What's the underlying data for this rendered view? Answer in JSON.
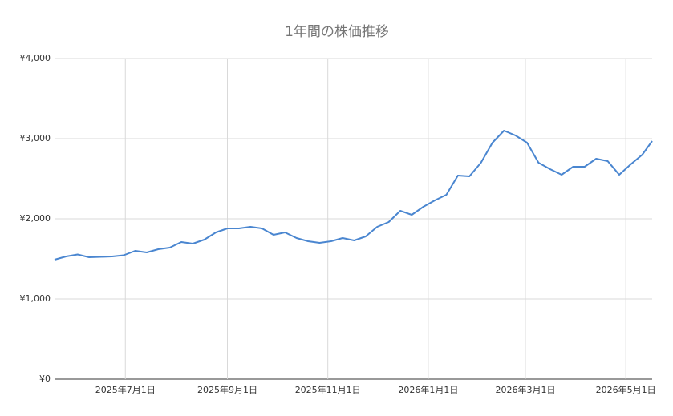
{
  "chart_data": {
    "type": "line",
    "title": "1年間の株価推移",
    "x": [
      "2025-05-19",
      "2025-05-26",
      "2025-06-02",
      "2025-06-09",
      "2025-06-16",
      "2025-06-23",
      "2025-06-30",
      "2025-07-07",
      "2025-07-14",
      "2025-07-21",
      "2025-07-28",
      "2025-08-04",
      "2025-08-11",
      "2025-08-18",
      "2025-08-25",
      "2025-09-01",
      "2025-09-08",
      "2025-09-15",
      "2025-09-22",
      "2025-09-29",
      "2025-10-06",
      "2025-10-13",
      "2025-10-20",
      "2025-10-27",
      "2025-11-03",
      "2025-11-10",
      "2025-11-17",
      "2025-11-24",
      "2025-12-01",
      "2025-12-08",
      "2025-12-15",
      "2025-12-22",
      "2025-12-29",
      "2026-01-05",
      "2026-01-12",
      "2026-01-19",
      "2026-01-26",
      "2026-02-02",
      "2026-02-09",
      "2026-02-16",
      "2026-02-23",
      "2026-03-02",
      "2026-03-09",
      "2026-03-16",
      "2026-03-23",
      "2026-03-30",
      "2026-04-06",
      "2026-04-13",
      "2026-04-20",
      "2026-04-27",
      "2026-05-04",
      "2026-05-11",
      "2026-05-17"
    ],
    "series": [
      {
        "name": "株価",
        "color": "#4a86d0",
        "values": [
          1490,
          1530,
          1555,
          1520,
          1525,
          1530,
          1545,
          1600,
          1580,
          1620,
          1640,
          1710,
          1690,
          1740,
          1830,
          1880,
          1880,
          1900,
          1880,
          1800,
          1830,
          1760,
          1720,
          1700,
          1720,
          1760,
          1730,
          1780,
          1900,
          1960,
          2100,
          2050,
          2150,
          2230,
          2300,
          2540,
          2530,
          2700,
          2950,
          3100,
          3040,
          2950,
          2700,
          2620,
          2550,
          2650,
          2650,
          2750,
          2720,
          2550,
          2680,
          2800,
          2970
        ]
      }
    ],
    "xlim": [
      "2025-05-19",
      "2026-05-17"
    ],
    "xticks": [
      {
        "value": "2025-07-01",
        "label": "2025年7月1日"
      },
      {
        "value": "2025-09-01",
        "label": "2025年9月1日"
      },
      {
        "value": "2025-11-01",
        "label": "2025年11月1日"
      },
      {
        "value": "2026-01-01",
        "label": "2026年1月1日"
      },
      {
        "value": "2026-03-01",
        "label": "2026年3月1日"
      },
      {
        "value": "2026-05-01",
        "label": "2026年5月1日"
      }
    ],
    "ylim": [
      0,
      4000
    ],
    "yticks": [
      {
        "value": 0,
        "label": "¥0"
      },
      {
        "value": 1000,
        "label": "¥1,000"
      },
      {
        "value": 2000,
        "label": "¥2,000"
      },
      {
        "value": 3000,
        "label": "¥3,000"
      },
      {
        "value": 4000,
        "label": "¥4,000"
      }
    ],
    "grid": true
  }
}
